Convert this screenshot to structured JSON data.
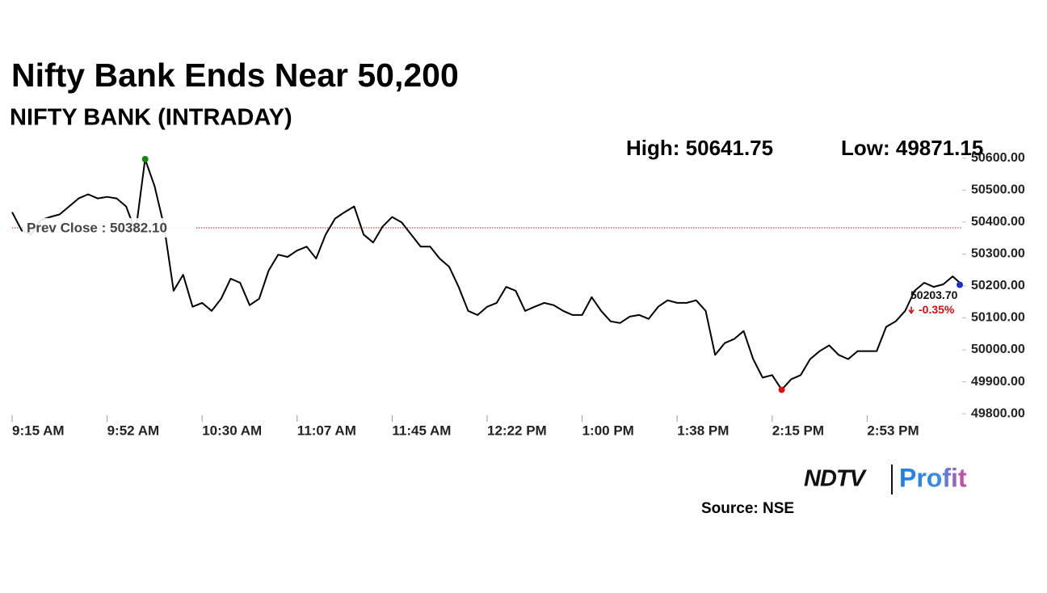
{
  "chart_data": {
    "type": "line",
    "title": "Nifty Bank Ends Near 50,200",
    "subtitle": "NIFTY BANK (INTRADAY)",
    "annotations": {
      "high": "High: 50641.75",
      "low": "Low: 49871.15",
      "prev_close_label": "Prev Close : 50382.10",
      "last_label": "50203.70",
      "change_label": "-0.35%"
    },
    "prev_close": 50382.1,
    "categories": [
      "9:15 AM",
      null,
      null,
      null,
      null,
      null,
      null,
      null,
      null,
      null,
      "9:52 AM",
      null,
      null,
      null,
      null,
      null,
      null,
      null,
      null,
      null,
      "10:30 AM",
      null,
      null,
      null,
      null,
      null,
      null,
      null,
      null,
      null,
      "11:07 AM",
      null,
      null,
      null,
      null,
      null,
      null,
      null,
      null,
      null,
      "11:45 AM",
      null,
      null,
      null,
      null,
      null,
      null,
      null,
      null,
      null,
      "12:22 PM",
      null,
      null,
      null,
      null,
      null,
      null,
      null,
      null,
      null,
      "1:00 PM",
      null,
      null,
      null,
      null,
      null,
      null,
      null,
      null,
      null,
      "1:38 PM",
      null,
      null,
      null,
      null,
      null,
      null,
      null,
      null,
      null,
      "2:15 PM",
      null,
      null,
      null,
      null,
      null,
      null,
      null,
      null,
      null,
      "2:53 PM",
      null,
      null,
      null,
      null,
      null,
      null,
      null,
      null,
      null,
      null
    ],
    "series": [
      {
        "name": "NIFTY BANK",
        "color": "#000000",
        "values": [
          50431,
          50374,
          50361,
          50406,
          50416,
          50424,
          50449,
          50474,
          50487,
          50474,
          50479,
          50474,
          50449,
          50370,
          50597,
          50512,
          50386,
          50185,
          50235,
          50135,
          50147,
          50122,
          50160,
          50223,
          50210,
          50140,
          50160,
          50248,
          50298,
          50291,
          50311,
          50323,
          50286,
          50361,
          50411,
          50431,
          50449,
          50361,
          50336,
          50386,
          50416,
          50399,
          50361,
          50323,
          50323,
          50286,
          50260,
          50197,
          50122,
          50109,
          50135,
          50147,
          50197,
          50185,
          50122,
          50135,
          50147,
          50140,
          50122,
          50109,
          50109,
          50165,
          50122,
          50089,
          50084,
          50104,
          50109,
          50097,
          50135,
          50155,
          50147,
          50147,
          50155,
          50122,
          49984,
          50021,
          50034,
          50059,
          49971,
          49913,
          49921,
          49875,
          49908,
          49921,
          49971,
          49996,
          50014,
          49984,
          49971,
          49996,
          49996,
          49996,
          50072,
          50089,
          50122,
          50185,
          50210,
          50197,
          50205,
          50230,
          50203.7
        ]
      }
    ],
    "markers": {
      "high_index": 14,
      "low_index": 81,
      "high_color": "#0a8a0a",
      "low_color": "#e01010",
      "last_color": "#1a2fd0",
      "prev_close_color": "#c02020",
      "change_color": "#d01010"
    },
    "ylim": [
      49780,
      50640
    ],
    "yticks": [
      {
        "value": 49800,
        "label": "49800.00"
      },
      {
        "value": 49900,
        "label": "49900.00"
      },
      {
        "value": 50000,
        "label": "50000.00"
      },
      {
        "value": 50100,
        "label": "50100.00"
      },
      {
        "value": 50200,
        "label": "50200.00"
      },
      {
        "value": 50300,
        "label": "50300.00"
      },
      {
        "value": 50400,
        "label": "50400.00"
      },
      {
        "value": 50500,
        "label": "50500.00"
      },
      {
        "value": 50600,
        "label": "50600.00"
      }
    ],
    "grid": false,
    "source": "Source: NSE",
    "logo": {
      "brand": "NDTV",
      "product": "Profit"
    }
  }
}
